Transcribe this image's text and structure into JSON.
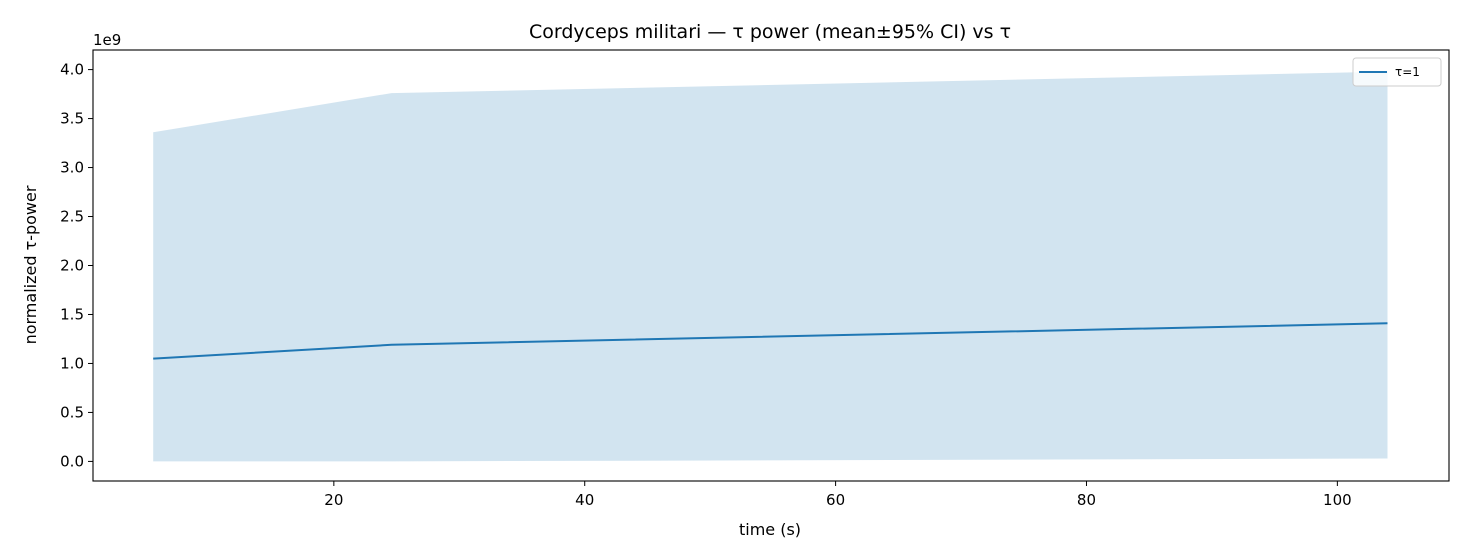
{
  "chart_data": {
    "type": "line",
    "title": "Cordyceps militari — τ power (mean±95% CI) vs τ",
    "xlabel": "time (s)",
    "ylabel": "normalized τ-power",
    "y_offset_label": "1e9",
    "y_scale": 1000000000,
    "xlim": [
      0.8,
      108.9
    ],
    "ylim": [
      -0.2,
      4.2
    ],
    "x_ticks": [
      20,
      40,
      60,
      80,
      100
    ],
    "x_tick_labels": [
      "20",
      "40",
      "60",
      "80",
      "100"
    ],
    "y_ticks": [
      0.0,
      0.5,
      1.0,
      1.5,
      2.0,
      2.5,
      3.0,
      3.5,
      4.0
    ],
    "y_tick_labels": [
      "0.0",
      "0.5",
      "1.0",
      "1.5",
      "2.0",
      "2.5",
      "3.0",
      "3.5",
      "4.0"
    ],
    "grid": false,
    "legend_position": "top-right",
    "series": [
      {
        "name": "τ=1",
        "color": "#1f77b4",
        "band_color": "#1f77b4",
        "x": [
          5.6,
          24.6,
          104.0
        ],
        "y": [
          1.05,
          1.19,
          1.41
        ],
        "ci_upper": [
          3.36,
          3.76,
          3.98
        ],
        "ci_lower": [
          0.0,
          0.0,
          0.03
        ]
      }
    ]
  }
}
